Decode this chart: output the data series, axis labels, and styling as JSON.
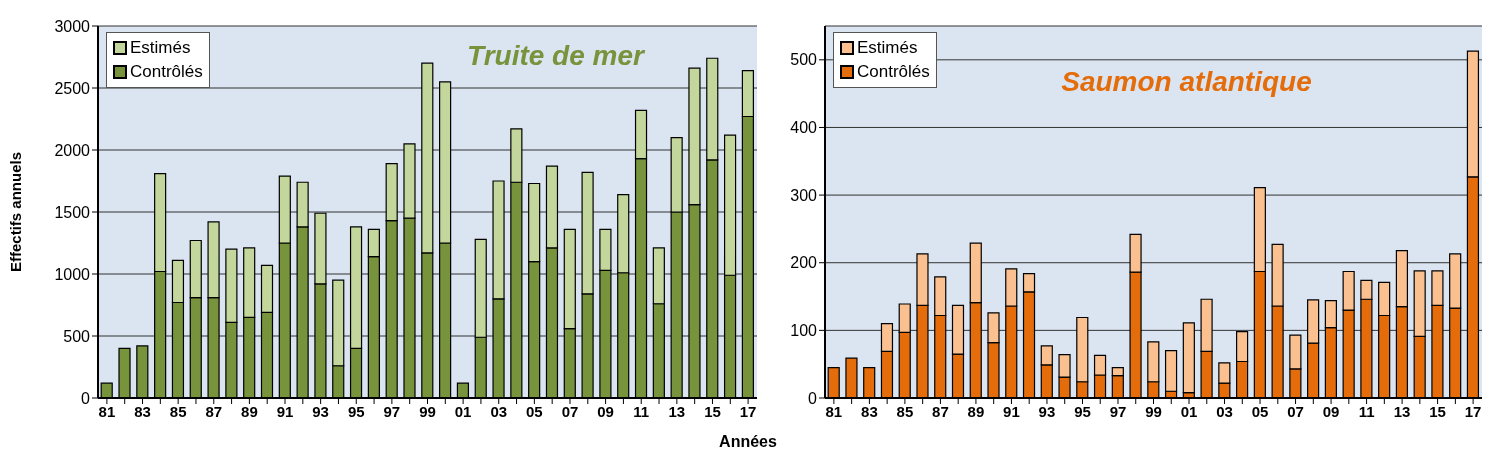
{
  "chart_data": [
    {
      "type": "bar",
      "title": "Truite de mer",
      "xlabel": "Années",
      "ylabel": "Effectifs annuels",
      "stacked": true,
      "grid": "y",
      "legend": "top left",
      "categories": [
        "81",
        null,
        "83",
        null,
        "85",
        null,
        "87",
        null,
        "89",
        null,
        "91",
        null,
        "93",
        null,
        "95",
        null,
        "97",
        null,
        "99",
        null,
        "01",
        null,
        "03",
        null,
        "05",
        null,
        "07",
        null,
        "09",
        null,
        "11",
        null,
        "13",
        null,
        "15",
        null,
        "17"
      ],
      "series": [
        {
          "name": "Contrôlés",
          "color": "#77933c",
          "values": [
            120,
            400,
            420,
            1020,
            770,
            810,
            810,
            610,
            650,
            690,
            1250,
            1380,
            920,
            260,
            400,
            1140,
            1430,
            1450,
            1170,
            1250,
            120,
            490,
            800,
            1740,
            1100,
            1210,
            560,
            840,
            1030,
            1010,
            1930,
            760,
            1500,
            1560,
            1920,
            990,
            2270
          ]
        },
        {
          "name": "Estimés",
          "color": "#c3d69b",
          "values": [
            0,
            0,
            0,
            790,
            340,
            460,
            610,
            590,
            560,
            380,
            540,
            360,
            570,
            690,
            980,
            220,
            460,
            600,
            1530,
            1300,
            0,
            790,
            950,
            430,
            630,
            660,
            800,
            980,
            330,
            630,
            390,
            450,
            600,
            1100,
            820,
            1130,
            370
          ]
        }
      ],
      "ylim": [
        0,
        3000
      ],
      "yticks": [
        0,
        500,
        1000,
        1500,
        2000,
        2500,
        3000
      ]
    },
    {
      "type": "bar",
      "title": "Saumon atlantique",
      "stacked": true,
      "grid": "y",
      "legend": "top left",
      "categories": [
        "81",
        null,
        "83",
        null,
        "85",
        null,
        "87",
        null,
        "89",
        null,
        "91",
        null,
        "93",
        null,
        "95",
        null,
        "97",
        null,
        "99",
        null,
        "01",
        null,
        "03",
        null,
        "05",
        null,
        "07",
        null,
        "09",
        null,
        "11",
        null,
        "13",
        null,
        "15",
        null,
        "17"
      ],
      "series": [
        {
          "name": "Contrôlés",
          "color": "#e46c0a",
          "values": [
            45,
            59,
            45,
            69,
            97,
            137,
            122,
            65,
            141,
            82,
            136,
            157,
            49,
            31,
            24,
            34,
            33,
            186,
            24,
            10,
            8,
            69,
            22,
            54,
            187,
            136,
            43,
            81,
            104,
            130,
            146,
            122,
            135,
            91,
            137,
            133,
            327
          ]
        },
        {
          "name": "Estimés",
          "color": "#fac090",
          "values": [
            0,
            0,
            0,
            41,
            42,
            76,
            57,
            72,
            88,
            44,
            55,
            27,
            28,
            33,
            95,
            29,
            12,
            56,
            59,
            60,
            103,
            77,
            30,
            44,
            124,
            91,
            50,
            64,
            40,
            57,
            28,
            49,
            83,
            97,
            51,
            80,
            186
          ]
        }
      ],
      "ylim": [
        0,
        550
      ],
      "yticks": [
        0,
        100,
        200,
        300,
        400,
        500
      ]
    }
  ]
}
